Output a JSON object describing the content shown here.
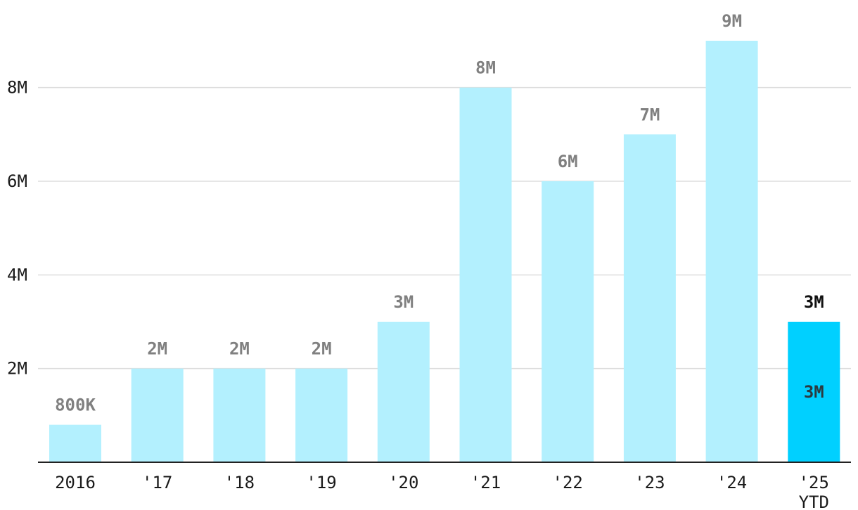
{
  "chart_data": {
    "type": "bar",
    "categories": [
      "2016",
      "'17",
      "'18",
      "'19",
      "'20",
      "'21",
      "'22",
      "'23",
      "'24",
      "'25 YTD"
    ],
    "values": [
      800000,
      2000000,
      2000000,
      2000000,
      3000000,
      8000000,
      6000000,
      7000000,
      9000000,
      3000000
    ],
    "data_labels": [
      "800K",
      "2M",
      "2M",
      "2M",
      "3M",
      "8M",
      "6M",
      "7M",
      "9M",
      "3M"
    ],
    "highlight_index": 9,
    "highlight_inner_label": "3M",
    "yticks": [
      2000000,
      4000000,
      6000000,
      8000000
    ],
    "ytick_labels": [
      "2M",
      "4M",
      "6M",
      "8M"
    ],
    "ylim": [
      0,
      9000000
    ],
    "grid": true,
    "colors": {
      "bar": "#b3f0fe",
      "bar_highlight": "#00d0ff",
      "gridline": "#dddddd",
      "axis": "#222222",
      "label": "#808080",
      "label_highlight": "#111111"
    },
    "title": "",
    "xlabel": "",
    "ylabel": ""
  }
}
